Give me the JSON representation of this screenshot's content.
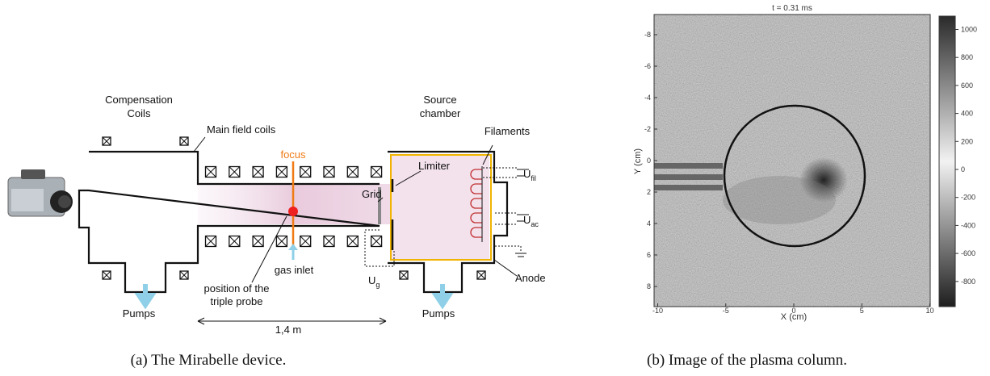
{
  "panel_a": {
    "caption": "(a) The Mirabelle device.",
    "compensation_coils": [
      "Compensation",
      "Coils"
    ],
    "main_field_coils": "Main field coils",
    "focus": "focus",
    "source_chamber": [
      "Source",
      "chamber"
    ],
    "filaments": "Filaments",
    "limiter": "Limiter",
    "grid": "Grid",
    "u_fil": {
      "main": "U",
      "sub": "fil"
    },
    "u_ac": {
      "main": "U",
      "sub": "ac"
    },
    "u_g": {
      "main": "U",
      "sub": "g"
    },
    "gas_inlet": "gas inlet",
    "probe_position": [
      "position of the",
      "triple probe"
    ],
    "anode": "Anode",
    "pumps_left": "Pumps",
    "pumps_right": "Pumps",
    "length": "1,4 m"
  },
  "panel_b": {
    "caption": "(b) Image of the plasma column.",
    "title": "t = 0.31 ms",
    "x_label": "X (cm)",
    "y_label": "Y (cm)",
    "x_ticks": [
      -10,
      -5,
      0,
      5,
      10
    ],
    "y_ticks": [
      -8,
      -6,
      -4,
      -2,
      0,
      2,
      4,
      6,
      8
    ],
    "colorbar_ticks": [
      1000,
      800,
      600,
      400,
      200,
      0,
      -200,
      -400,
      -600,
      -800
    ]
  }
}
